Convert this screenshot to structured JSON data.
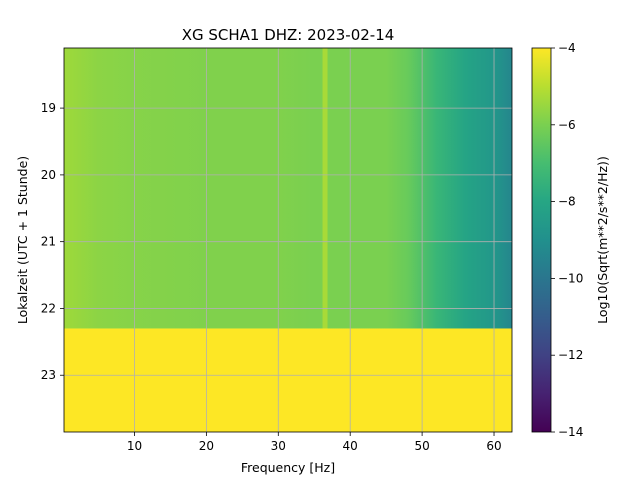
{
  "chart_data": {
    "type": "heatmap",
    "title": "XG SCHA1  DHZ: 2023-02-14",
    "xlabel": "Frequency [Hz]",
    "ylabel": "Lokalzeit (UTC + 1 Stunde)",
    "xlim": [
      0.2,
      62.5
    ],
    "ylim": [
      18.1,
      23.85
    ],
    "y_inverted": true,
    "x_ticks": [
      10,
      20,
      30,
      40,
      50,
      60
    ],
    "y_ticks": [
      19,
      20,
      21,
      22,
      23
    ],
    "grid": true,
    "data_end_hour": 22.3,
    "fill_value_after_end": -4,
    "spectral_line_hz": 36.5,
    "colorbar": {
      "label": "Log10(Sqrt(m**2/s**2/Hz))",
      "colormap": "viridis",
      "vmin": -14,
      "vmax": -4,
      "ticks": [
        -4,
        -6,
        -8,
        -10,
        -12,
        -14
      ]
    },
    "spectrum_profile": [
      {
        "freq": 0.2,
        "value": -5.4
      },
      {
        "freq": 5,
        "value": -5.7
      },
      {
        "freq": 10,
        "value": -5.8
      },
      {
        "freq": 20,
        "value": -5.9
      },
      {
        "freq": 30,
        "value": -5.9
      },
      {
        "freq": 35,
        "value": -6.0
      },
      {
        "freq": 36.5,
        "value": -5.0
      },
      {
        "freq": 38,
        "value": -6.0
      },
      {
        "freq": 45,
        "value": -6.0
      },
      {
        "freq": 48,
        "value": -6.3
      },
      {
        "freq": 52,
        "value": -7.3
      },
      {
        "freq": 56,
        "value": -8.1
      },
      {
        "freq": 60,
        "value": -8.7
      },
      {
        "freq": 62.5,
        "value": -9.4
      }
    ]
  }
}
